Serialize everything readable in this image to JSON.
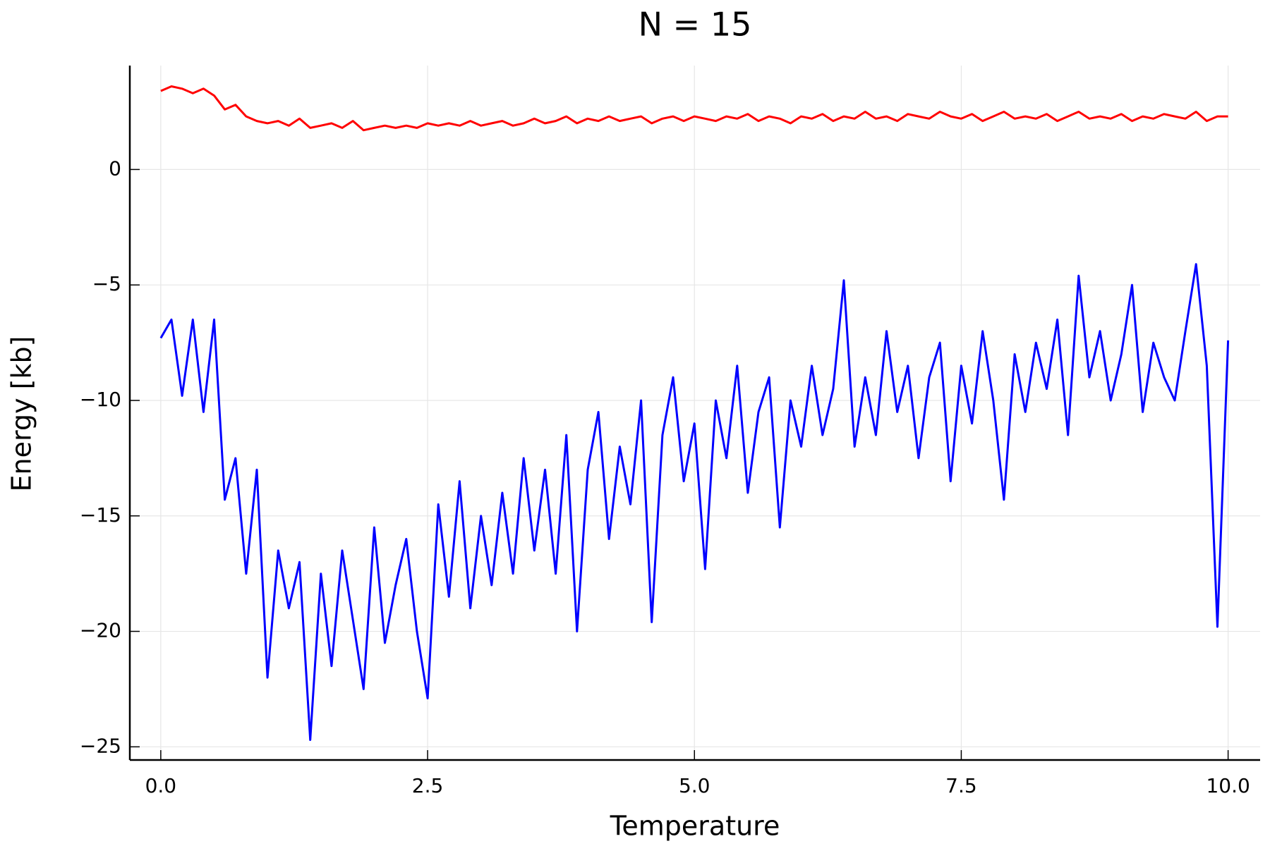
{
  "chart_data": {
    "type": "line",
    "title": "N = 15",
    "xlabel": "Temperature",
    "ylabel": "Energy [kb]",
    "x": [
      0,
      0.1,
      0.2,
      0.3,
      0.4,
      0.5,
      0.6,
      0.7,
      0.8,
      0.9,
      1,
      1.1,
      1.2,
      1.3,
      1.4,
      1.5,
      1.6,
      1.7,
      1.8,
      1.9,
      2,
      2.1,
      2.2,
      2.3,
      2.4,
      2.5,
      2.6,
      2.7,
      2.8,
      2.9,
      3,
      3.1,
      3.2,
      3.3,
      3.4,
      3.5,
      3.6,
      3.7,
      3.8,
      3.9,
      4,
      4.1,
      4.2,
      4.3,
      4.4,
      4.5,
      4.6,
      4.7,
      4.8,
      4.9,
      5,
      5.1,
      5.2,
      5.3,
      5.4,
      5.5,
      5.6,
      5.7,
      5.8,
      5.9,
      6,
      6.1,
      6.2,
      6.3,
      6.4,
      6.5,
      6.6,
      6.7,
      6.8,
      6.9,
      7,
      7.1,
      7.2,
      7.3,
      7.4,
      7.5,
      7.6,
      7.7,
      7.8,
      7.9,
      8,
      8.1,
      8.2,
      8.3,
      8.4,
      8.5,
      8.6,
      8.7,
      8.8,
      8.9,
      9,
      9.1,
      9.2,
      9.3,
      9.4,
      9.5,
      9.6,
      9.7,
      9.8,
      9.9,
      10
    ],
    "series": [
      {
        "color": "#0000ff",
        "values": [
          -7.3,
          -6.5,
          -9.8,
          -6.5,
          -10.5,
          -6.5,
          -14.3,
          -12.5,
          -17.5,
          -13.0,
          -22.0,
          -16.5,
          -19.0,
          -17.0,
          -24.7,
          -17.5,
          -21.5,
          -16.5,
          -19.5,
          -22.5,
          -15.5,
          -20.5,
          -18.0,
          -16.0,
          -20.0,
          -22.9,
          -14.5,
          -18.5,
          -13.5,
          -19.0,
          -15.0,
          -18.0,
          -14.0,
          -17.5,
          -12.5,
          -16.5,
          -13.0,
          -17.5,
          -11.5,
          -20.0,
          -13.0,
          -10.5,
          -16.0,
          -12.0,
          -14.5,
          -10.0,
          -19.6,
          -11.5,
          -9.0,
          -13.5,
          -11.0,
          -17.3,
          -10.0,
          -12.5,
          -8.5,
          -14.0,
          -10.5,
          -9.0,
          -15.5,
          -10.0,
          -12.0,
          -8.5,
          -11.5,
          -9.5,
          -4.8,
          -12.0,
          -9.0,
          -11.5,
          -7.0,
          -10.5,
          -8.5,
          -12.5,
          -9.0,
          -7.5,
          -13.5,
          -8.5,
          -11.0,
          -7.0,
          -10.0,
          -14.3,
          -8.0,
          -10.5,
          -7.5,
          -9.5,
          -6.5,
          -11.5,
          -4.6,
          -9.0,
          -7.0,
          -10.0,
          -8.0,
          -5.0,
          -10.5,
          -7.5,
          -9.0,
          -10.0,
          -7.0,
          -4.1,
          -8.5,
          -19.8,
          -7.4
        ]
      },
      {
        "color": "#ff0000",
        "values": [
          3.4,
          3.6,
          3.5,
          3.3,
          3.5,
          3.2,
          2.6,
          2.8,
          2.3,
          2.1,
          2.0,
          2.1,
          1.9,
          2.2,
          1.8,
          1.9,
          2.0,
          1.8,
          2.1,
          1.7,
          1.8,
          1.9,
          1.8,
          1.9,
          1.8,
          2.0,
          1.9,
          2.0,
          1.9,
          2.1,
          1.9,
          2.0,
          2.1,
          1.9,
          2.0,
          2.2,
          2.0,
          2.1,
          2.3,
          2.0,
          2.2,
          2.1,
          2.3,
          2.1,
          2.2,
          2.3,
          2.0,
          2.2,
          2.3,
          2.1,
          2.3,
          2.2,
          2.1,
          2.3,
          2.2,
          2.4,
          2.1,
          2.3,
          2.2,
          2.0,
          2.3,
          2.2,
          2.4,
          2.1,
          2.3,
          2.2,
          2.5,
          2.2,
          2.3,
          2.1,
          2.4,
          2.3,
          2.2,
          2.5,
          2.3,
          2.2,
          2.4,
          2.1,
          2.3,
          2.5,
          2.2,
          2.3,
          2.2,
          2.4,
          2.1,
          2.3,
          2.5,
          2.2,
          2.3,
          2.2,
          2.4,
          2.1,
          2.3,
          2.2,
          2.4,
          2.3,
          2.2,
          2.5,
          2.1,
          2.3,
          2.3
        ]
      }
    ],
    "xlim": [
      -0.29,
      10.3
    ],
    "ylim": [
      -25.57,
      4.5
    ],
    "xticks": [
      {
        "value": 0,
        "label": "0.0"
      },
      {
        "value": 2.5,
        "label": "2.5"
      },
      {
        "value": 5,
        "label": "5.0"
      },
      {
        "value": 7.5,
        "label": "7.5"
      },
      {
        "value": 10,
        "label": "10.0"
      }
    ],
    "yticks": [
      {
        "value": -25,
        "label": "−25"
      },
      {
        "value": -20,
        "label": "−20"
      },
      {
        "value": -15,
        "label": "−15"
      },
      {
        "value": -10,
        "label": "−10"
      },
      {
        "value": -5,
        "label": "−5"
      },
      0
    ],
    "grid": true
  }
}
